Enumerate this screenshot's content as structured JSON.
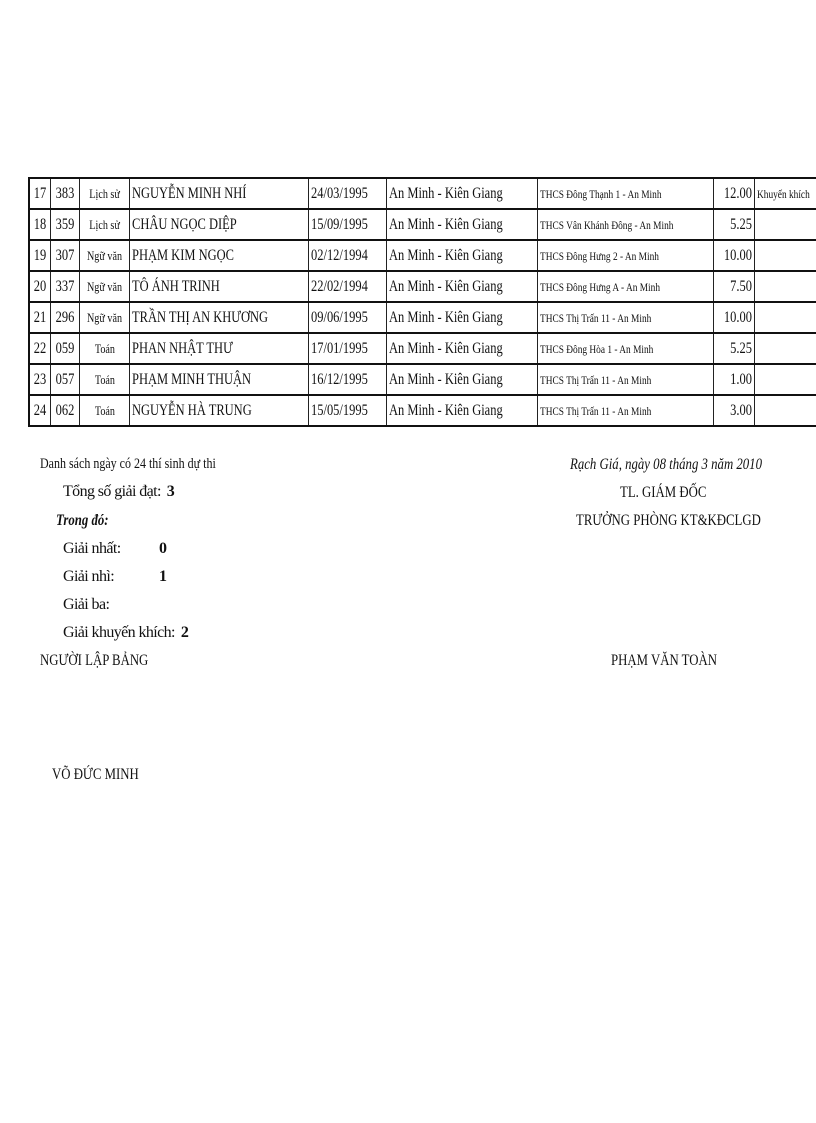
{
  "table": {
    "rows": [
      {
        "stt": "17",
        "sbd": "383",
        "subject": "Lịch sử",
        "name": "NGUYỄN MINH NHÍ",
        "dob": "24/03/1995",
        "birthplace": "An Minh - Kiên Giang",
        "school": "THCS Đông Thạnh 1 - An Minh",
        "score": "12.00",
        "prize": "Khuyến khích"
      },
      {
        "stt": "18",
        "sbd": "359",
        "subject": "Lịch sử",
        "name": "CHÂU NGỌC DIỆP",
        "dob": "15/09/1995",
        "birthplace": "An Minh - Kiên Giang",
        "school": "THCS Vân Khánh Đông - An Minh",
        "score": "5.25",
        "prize": ""
      },
      {
        "stt": "19",
        "sbd": "307",
        "subject": "Ngữ văn",
        "name": "PHẠM KIM NGỌC",
        "dob": "02/12/1994",
        "birthplace": "An Minh - Kiên Giang",
        "school": "THCS Đông Hưng 2 - An Minh",
        "score": "10.00",
        "prize": ""
      },
      {
        "stt": "20",
        "sbd": "337",
        "subject": "Ngữ văn",
        "name": "TÔ ÁNH TRINH",
        "dob": "22/02/1994",
        "birthplace": "An Minh - Kiên Giang",
        "school": "THCS Đông Hưng A - An Minh",
        "score": "7.50",
        "prize": ""
      },
      {
        "stt": "21",
        "sbd": "296",
        "subject": "Ngữ văn",
        "name": "TRẦN THỊ AN KHƯƠNG",
        "dob": "09/06/1995",
        "birthplace": "An Minh - Kiên Giang",
        "school": "THCS Thị Trấn 11 - An Minh",
        "score": "10.00",
        "prize": ""
      },
      {
        "stt": "22",
        "sbd": "059",
        "subject": "Toán",
        "name": "PHAN NHẬT THƯ",
        "dob": "17/01/1995",
        "birthplace": "An Minh - Kiên Giang",
        "school": "THCS Đông Hòa 1 - An Minh",
        "score": "5.25",
        "prize": ""
      },
      {
        "stt": "23",
        "sbd": "057",
        "subject": "Toán",
        "name": "PHẠM MINH THUẬN",
        "dob": "16/12/1995",
        "birthplace": "An Minh - Kiên Giang",
        "school": "THCS Thị Trấn 11 - An Minh",
        "score": "1.00",
        "prize": ""
      },
      {
        "stt": "24",
        "sbd": "062",
        "subject": "Toán",
        "name": "NGUYỄN HÀ TRUNG",
        "dob": "15/05/1995",
        "birthplace": "An Minh - Kiên Giang",
        "school": "THCS Thị Trấn 11 - An Minh",
        "score": "3.00",
        "prize": ""
      }
    ]
  },
  "summary": {
    "list_note": "Danh sách ngày có 24 thí sinh dự thi",
    "total_label": "Tổng số giải đạt:",
    "total_value": "3",
    "of_which": "Trong đó:",
    "first_label": "Giải nhất:",
    "first_value": "0",
    "second_label": "Giải nhì:",
    "second_value": "1",
    "third_label": "Giải ba:",
    "third_value": "",
    "encourage_label": "Giải khuyến khích:",
    "encourage_value": "2",
    "preparer_title": "NGƯỜI LẬP BẢNG",
    "preparer_name": "VÕ ĐỨC MINH"
  },
  "signature": {
    "place_date": "Rạch Giá, ngày 08 tháng 3 năm 2010",
    "title1": "TL. GIÁM ĐỐC",
    "title2": "TRƯỞNG PHÒNG KT&KĐCLGD",
    "name": "PHẠM VĂN TOÀN"
  }
}
